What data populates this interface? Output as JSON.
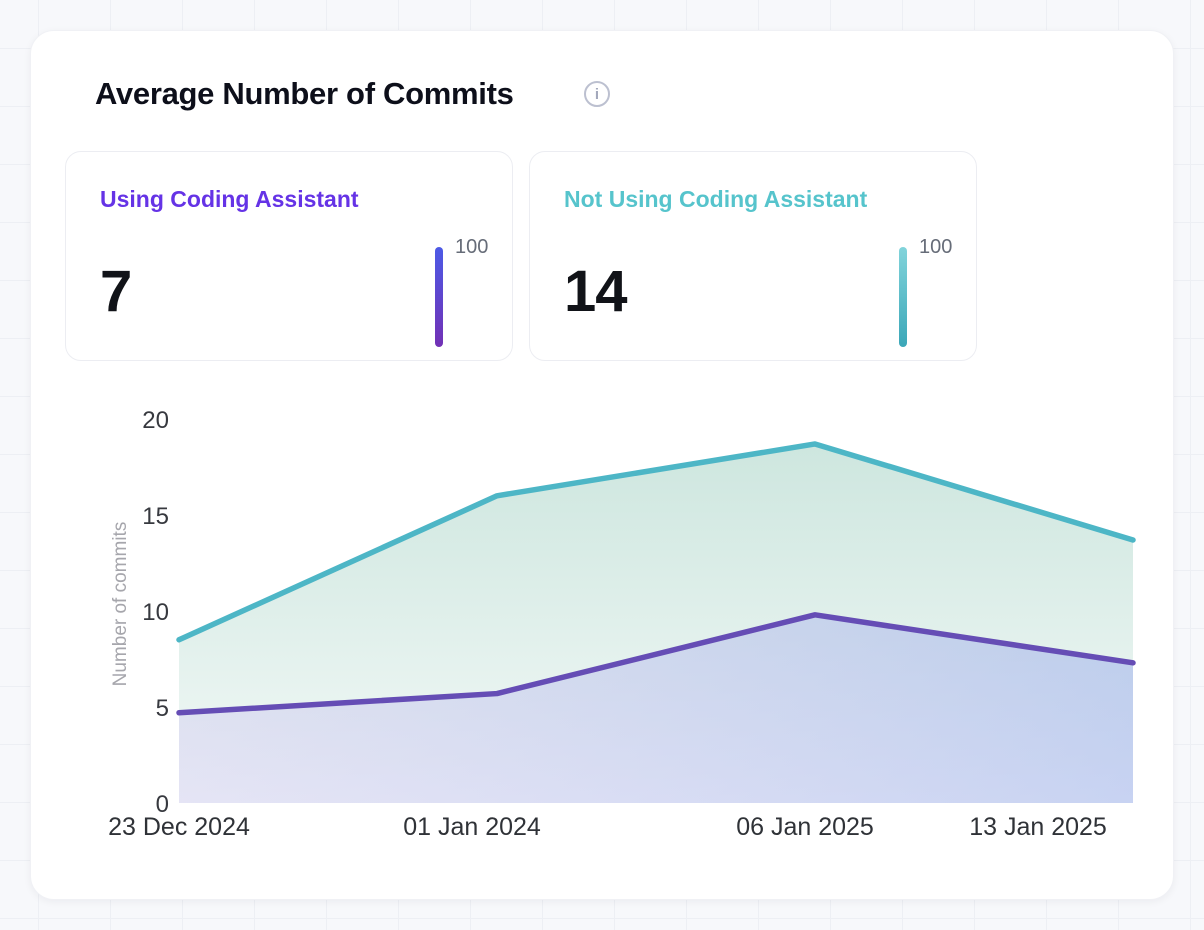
{
  "header": {
    "title": "Average Number of Commits",
    "info_icon": "i"
  },
  "stat_cards": [
    {
      "label": "Using Coding Assistant",
      "value": "7",
      "gauge_max": "100",
      "accent": "#6533E6"
    },
    {
      "label": "Not Using Coding Assistant",
      "value": "14",
      "gauge_max": "100",
      "accent": "#56C4CC"
    }
  ],
  "chart_data": {
    "type": "area",
    "title": "Average Number of Commits",
    "categories": [
      "23 Dec 2024",
      "01 Jan 2024",
      "06 Jan 2025",
      "13 Jan 2025"
    ],
    "series": [
      {
        "name": "Not Using Coding Assistant",
        "color": "#4DB6C6",
        "values": [
          8.5,
          16.0,
          18.7,
          13.7
        ]
      },
      {
        "name": "Using Coding Assistant",
        "color": "#654DB5",
        "values": [
          4.7,
          5.7,
          9.8,
          7.3
        ]
      }
    ],
    "xlabel": "",
    "ylabel": "Number of commits",
    "ylim": [
      0,
      20
    ],
    "yticks": [
      0,
      5,
      10,
      15,
      20
    ],
    "grid": false,
    "legend": "none"
  }
}
